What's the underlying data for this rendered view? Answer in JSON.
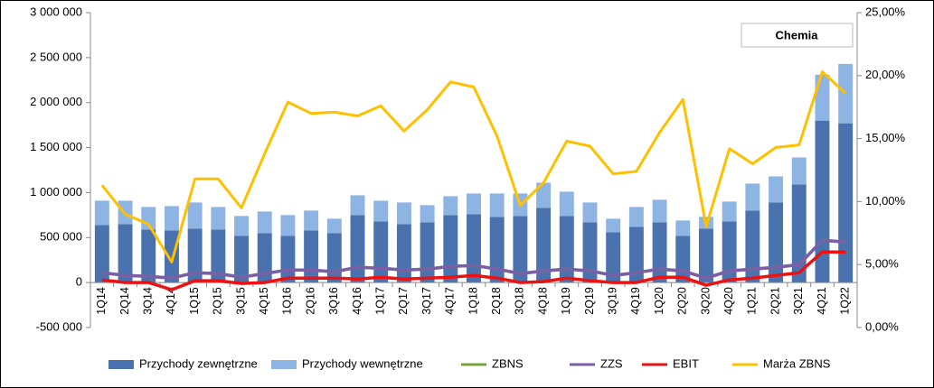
{
  "chart_data": {
    "type": "bar",
    "annotation": "Chemia",
    "stacked": true,
    "categories": [
      "1Q14",
      "2Q14",
      "3Q14",
      "4Q14",
      "1Q15",
      "2Q15",
      "3Q15",
      "4Q15",
      "1Q16",
      "2Q16",
      "3Q16",
      "4Q16",
      "1Q17",
      "2Q17",
      "3Q17",
      "4Q17",
      "1Q18",
      "2Q18",
      "3Q18",
      "4Q18",
      "1Q19",
      "2Q19",
      "3Q19",
      "4Q19",
      "1Q20",
      "2Q20",
      "3Q20",
      "4Q20",
      "1Q21",
      "2Q21",
      "3Q21",
      "4Q21",
      "1Q22"
    ],
    "series": [
      {
        "name": "Przychody zewnętrzne",
        "type": "bar",
        "color": "#4a72ae",
        "values": [
          640000,
          650000,
          590000,
          580000,
          600000,
          590000,
          520000,
          550000,
          520000,
          580000,
          550000,
          750000,
          680000,
          650000,
          670000,
          750000,
          760000,
          730000,
          740000,
          830000,
          740000,
          670000,
          560000,
          620000,
          670000,
          520000,
          600000,
          680000,
          800000,
          890000,
          1090000,
          1800000,
          1770000
        ]
      },
      {
        "name": "Przychody wewnętrzne",
        "type": "bar",
        "color": "#8db4e2",
        "values": [
          270000,
          260000,
          250000,
          270000,
          290000,
          250000,
          220000,
          240000,
          230000,
          220000,
          160000,
          220000,
          230000,
          240000,
          190000,
          210000,
          230000,
          260000,
          250000,
          280000,
          270000,
          220000,
          150000,
          220000,
          250000,
          170000,
          130000,
          220000,
          300000,
          290000,
          300000,
          510000,
          660000
        ]
      },
      {
        "name": "ZBNS",
        "type": "line",
        "color": "#77a33c",
        "values": [
          110000,
          80000,
          70000,
          50000,
          110000,
          100000,
          60000,
          100000,
          140000,
          140000,
          120000,
          170000,
          160000,
          140000,
          150000,
          180000,
          190000,
          150000,
          100000,
          130000,
          150000,
          130000,
          80000,
          110000,
          150000,
          130000,
          50000,
          130000,
          150000,
          170000,
          200000,
          470000,
          450000
        ]
      },
      {
        "name": "ZZS",
        "type": "line",
        "color": "#7a5ea8",
        "values": [
          110000,
          80000,
          70000,
          50000,
          110000,
          100000,
          60000,
          100000,
          140000,
          140000,
          120000,
          170000,
          160000,
          140000,
          150000,
          180000,
          190000,
          150000,
          100000,
          130000,
          150000,
          130000,
          80000,
          110000,
          150000,
          130000,
          50000,
          130000,
          150000,
          170000,
          200000,
          470000,
          450000
        ]
      },
      {
        "name": "EBIT",
        "type": "line",
        "color": "#ee1111",
        "values": [
          30000,
          0,
          0,
          -80000,
          20000,
          20000,
          -10000,
          0,
          50000,
          50000,
          50000,
          40000,
          60000,
          40000,
          50000,
          60000,
          80000,
          50000,
          0,
          10000,
          50000,
          20000,
          0,
          0,
          60000,
          60000,
          -30000,
          30000,
          50000,
          80000,
          110000,
          340000,
          340000
        ]
      },
      {
        "name": "Marża ZBNS",
        "type": "line",
        "color": "#ffc000",
        "axis": "y2",
        "values": [
          11.3,
          9.0,
          8.2,
          5.2,
          11.8,
          11.8,
          9.5,
          13.8,
          17.9,
          17.0,
          17.1,
          16.8,
          17.6,
          15.6,
          17.3,
          19.5,
          19.1,
          15.2,
          9.7,
          11.5,
          14.8,
          14.4,
          12.2,
          12.4,
          15.5,
          18.1,
          8.0,
          14.2,
          13.0,
          14.3,
          14.5,
          20.3,
          18.6
        ]
      }
    ],
    "ylim": [
      -500000,
      3000000
    ],
    "yticks": [
      {
        "value": -500000,
        "label": "-500 000"
      },
      0,
      {
        "value": 500000,
        "label": "500 000"
      },
      {
        "value": 1000000,
        "label": "1 000 000"
      },
      {
        "value": 1500000,
        "label": "1 500 000"
      },
      {
        "value": 2000000,
        "label": "2 000 000"
      },
      {
        "value": 2500000,
        "label": "2 500 000"
      },
      {
        "value": 3000000,
        "label": "3 000 000"
      }
    ],
    "y2lim": [
      0,
      25
    ],
    "y2ticks": [
      {
        "value": 0,
        "label": "0,00%"
      },
      {
        "value": 5,
        "label": "5,00%"
      },
      {
        "value": 10,
        "label": "10,00%"
      },
      {
        "value": 15,
        "label": "15,00%"
      },
      {
        "value": 20,
        "label": "20,00%"
      },
      {
        "value": 25,
        "label": "25,00%"
      }
    ],
    "legend": "bottom"
  }
}
